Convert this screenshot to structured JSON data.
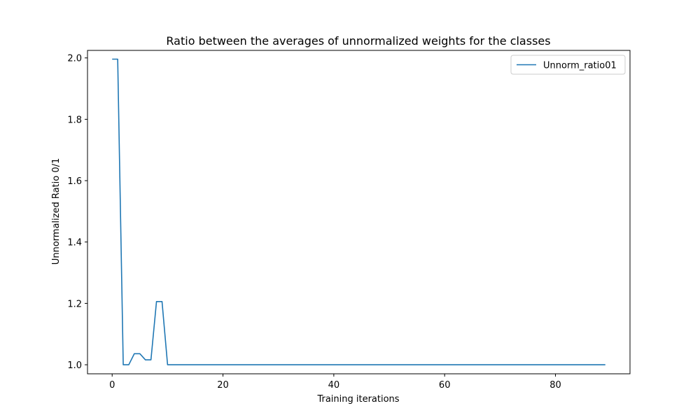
{
  "chart_data": {
    "type": "line",
    "title": "Ratio between the averages of unnormalized weights for the classes",
    "xlabel": "Training iterations",
    "ylabel": "Unnormalized Ratio 0/1",
    "xlim": [
      -4.45,
      93.45
    ],
    "ylim": [
      0.9705,
      2.0245
    ],
    "xticks": [
      0,
      20,
      40,
      60,
      80
    ],
    "yticks": [
      1.0,
      1.2,
      1.4,
      1.6,
      1.8,
      2.0
    ],
    "xtick_labels": [
      "0",
      "20",
      "40",
      "60",
      "80"
    ],
    "ytick_labels": [
      "1.0",
      "1.2",
      "1.4",
      "1.6",
      "1.8",
      "2.0"
    ],
    "grid": false,
    "legend_position": "top-right",
    "series": [
      {
        "name": "Unnorm_ratio01",
        "color": "#1f77b4",
        "x": [
          0,
          1,
          2,
          3,
          4,
          5,
          6,
          7,
          8,
          9,
          10,
          89
        ],
        "y": [
          1.996,
          1.996,
          1.0,
          1.0,
          1.036,
          1.036,
          1.016,
          1.016,
          1.206,
          1.206,
          1.0,
          1.0
        ]
      }
    ]
  }
}
